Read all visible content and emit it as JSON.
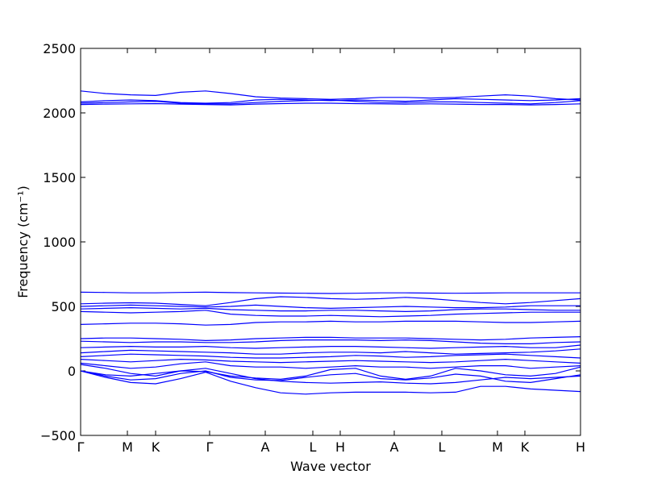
{
  "chart_data": {
    "type": "line",
    "xlabel": "Wave vector",
    "ylabel": "Frequency (cm⁻¹)",
    "x": [
      0,
      0.31,
      0.62,
      0.93,
      1.24,
      1.55,
      1.86,
      2.17,
      2.48,
      2.79,
      3.1,
      3.41,
      3.72,
      4.03,
      4.34,
      4.65,
      4.96,
      5.27,
      5.58,
      5.89,
      6.2
    ],
    "xlim": [
      0,
      6.2
    ],
    "xticks": [
      {
        "value": 0,
        "label": "Γ"
      },
      {
        "value": 0.58,
        "label": "M"
      },
      {
        "value": 0.93,
        "label": "K"
      },
      {
        "value": 1.6,
        "label": "Γ"
      },
      {
        "value": 2.29,
        "label": "A"
      },
      {
        "value": 2.88,
        "label": "L"
      },
      {
        "value": 3.22,
        "label": "H"
      },
      {
        "value": 3.89,
        "label": "A"
      },
      {
        "value": 4.48,
        "label": "L"
      },
      {
        "value": 5.17,
        "label": "M"
      },
      {
        "value": 5.51,
        "label": "K"
      },
      {
        "value": 6.2,
        "label": "H"
      }
    ],
    "ylim": [
      -500,
      2500
    ],
    "yticks": [
      {
        "value": -500,
        "label": "−500"
      },
      0,
      500,
      1000,
      1500,
      2000,
      2500
    ],
    "color": "#0000ff",
    "series": [
      {
        "values": [
          2170,
          2150,
          2140,
          2135,
          2160,
          2170,
          2150,
          2125,
          2115,
          2110,
          2105,
          2110,
          2120,
          2120,
          2115,
          2120,
          2130,
          2140,
          2130,
          2110,
          2100
        ]
      },
      {
        "values": [
          2085,
          2095,
          2100,
          2095,
          2080,
          2075,
          2080,
          2100,
          2105,
          2100,
          2095,
          2100,
          2095,
          2090,
          2100,
          2110,
          2105,
          2100,
          2095,
          2100,
          2110
        ]
      },
      {
        "values": [
          2075,
          2080,
          2085,
          2090,
          2075,
          2070,
          2070,
          2080,
          2090,
          2095,
          2100,
          2090,
          2080,
          2080,
          2085,
          2085,
          2080,
          2075,
          2070,
          2080,
          2095
        ]
      },
      {
        "values": [
          2065,
          2068,
          2070,
          2072,
          2068,
          2065,
          2062,
          2068,
          2072,
          2075,
          2075,
          2072,
          2070,
          2068,
          2070,
          2068,
          2065,
          2065,
          2062,
          2065,
          2070
        ]
      },
      {
        "values": [
          610,
          608,
          605,
          605,
          608,
          610,
          607,
          605,
          603,
          602,
          600,
          602,
          605,
          605,
          603,
          602,
          603,
          605,
          605,
          605,
          605
        ]
      },
      {
        "values": [
          520,
          525,
          528,
          525,
          515,
          505,
          530,
          560,
          575,
          570,
          560,
          555,
          560,
          570,
          560,
          545,
          530,
          520,
          530,
          545,
          560
        ]
      },
      {
        "values": [
          500,
          505,
          510,
          505,
          500,
          495,
          500,
          510,
          500,
          490,
          485,
          490,
          495,
          500,
          495,
          490,
          490,
          495,
          505,
          505,
          505
        ]
      },
      {
        "values": [
          480,
          485,
          490,
          485,
          480,
          485,
          475,
          470,
          465,
          465,
          470,
          470,
          465,
          460,
          465,
          475,
          480,
          480,
          475,
          470,
          470
        ]
      },
      {
        "values": [
          460,
          455,
          450,
          455,
          460,
          470,
          440,
          430,
          425,
          425,
          430,
          425,
          420,
          425,
          430,
          440,
          445,
          450,
          455,
          455,
          455
        ]
      },
      {
        "values": [
          360,
          365,
          370,
          370,
          365,
          355,
          360,
          375,
          380,
          380,
          385,
          380,
          380,
          385,
          385,
          385,
          380,
          375,
          375,
          380,
          385
        ]
      },
      {
        "values": [
          250,
          255,
          255,
          250,
          245,
          235,
          240,
          250,
          255,
          260,
          260,
          255,
          255,
          255,
          250,
          245,
          240,
          245,
          255,
          260,
          265
        ]
      },
      {
        "values": [
          230,
          225,
          220,
          225,
          225,
          220,
          220,
          225,
          235,
          240,
          240,
          240,
          235,
          240,
          235,
          225,
          215,
          210,
          210,
          220,
          225
        ]
      },
      {
        "values": [
          180,
          185,
          190,
          185,
          185,
          190,
          180,
          175,
          180,
          185,
          190,
          190,
          185,
          180,
          175,
          180,
          185,
          190,
          180,
          180,
          200
        ]
      },
      {
        "values": [
          140,
          150,
          160,
          155,
          150,
          145,
          140,
          130,
          130,
          140,
          145,
          145,
          140,
          150,
          140,
          130,
          135,
          140,
          145,
          155,
          170
        ]
      },
      {
        "values": [
          110,
          120,
          130,
          125,
          120,
          115,
          105,
          100,
          100,
          105,
          110,
          120,
          115,
          105,
          110,
          120,
          125,
          130,
          120,
          110,
          100
        ]
      },
      {
        "values": [
          90,
          80,
          70,
          80,
          90,
          85,
          75,
          70,
          65,
          70,
          75,
          80,
          75,
          70,
          65,
          70,
          80,
          90,
          80,
          70,
          60
        ]
      },
      {
        "values": [
          60,
          40,
          20,
          30,
          55,
          70,
          40,
          30,
          30,
          20,
          30,
          40,
          30,
          30,
          20,
          30,
          40,
          40,
          20,
          30,
          40
        ]
      },
      {
        "values": [
          0,
          -30,
          -40,
          -20,
          0,
          -5,
          -40,
          -55,
          -65,
          -40,
          10,
          20,
          -40,
          -65,
          -40,
          20,
          0,
          -30,
          -40,
          -20,
          30
        ]
      },
      {
        "values": [
          0,
          -40,
          -70,
          -60,
          -20,
          0,
          -50,
          -70,
          -75,
          -50,
          -30,
          -20,
          -60,
          -70,
          -55,
          -25,
          -40,
          -80,
          -90,
          -60,
          -30
        ]
      },
      {
        "values": [
          0,
          -50,
          -90,
          -100,
          -60,
          -10,
          -80,
          -130,
          -170,
          -180,
          -170,
          -165,
          -165,
          -165,
          -170,
          -165,
          -120,
          -120,
          -140,
          -150,
          -160
        ]
      },
      {
        "values": [
          50,
          20,
          -20,
          -40,
          0,
          20,
          -20,
          -60,
          -80,
          -90,
          -95,
          -90,
          -85,
          -95,
          -100,
          -90,
          -70,
          -50,
          -60,
          -50,
          -40
        ]
      }
    ]
  }
}
